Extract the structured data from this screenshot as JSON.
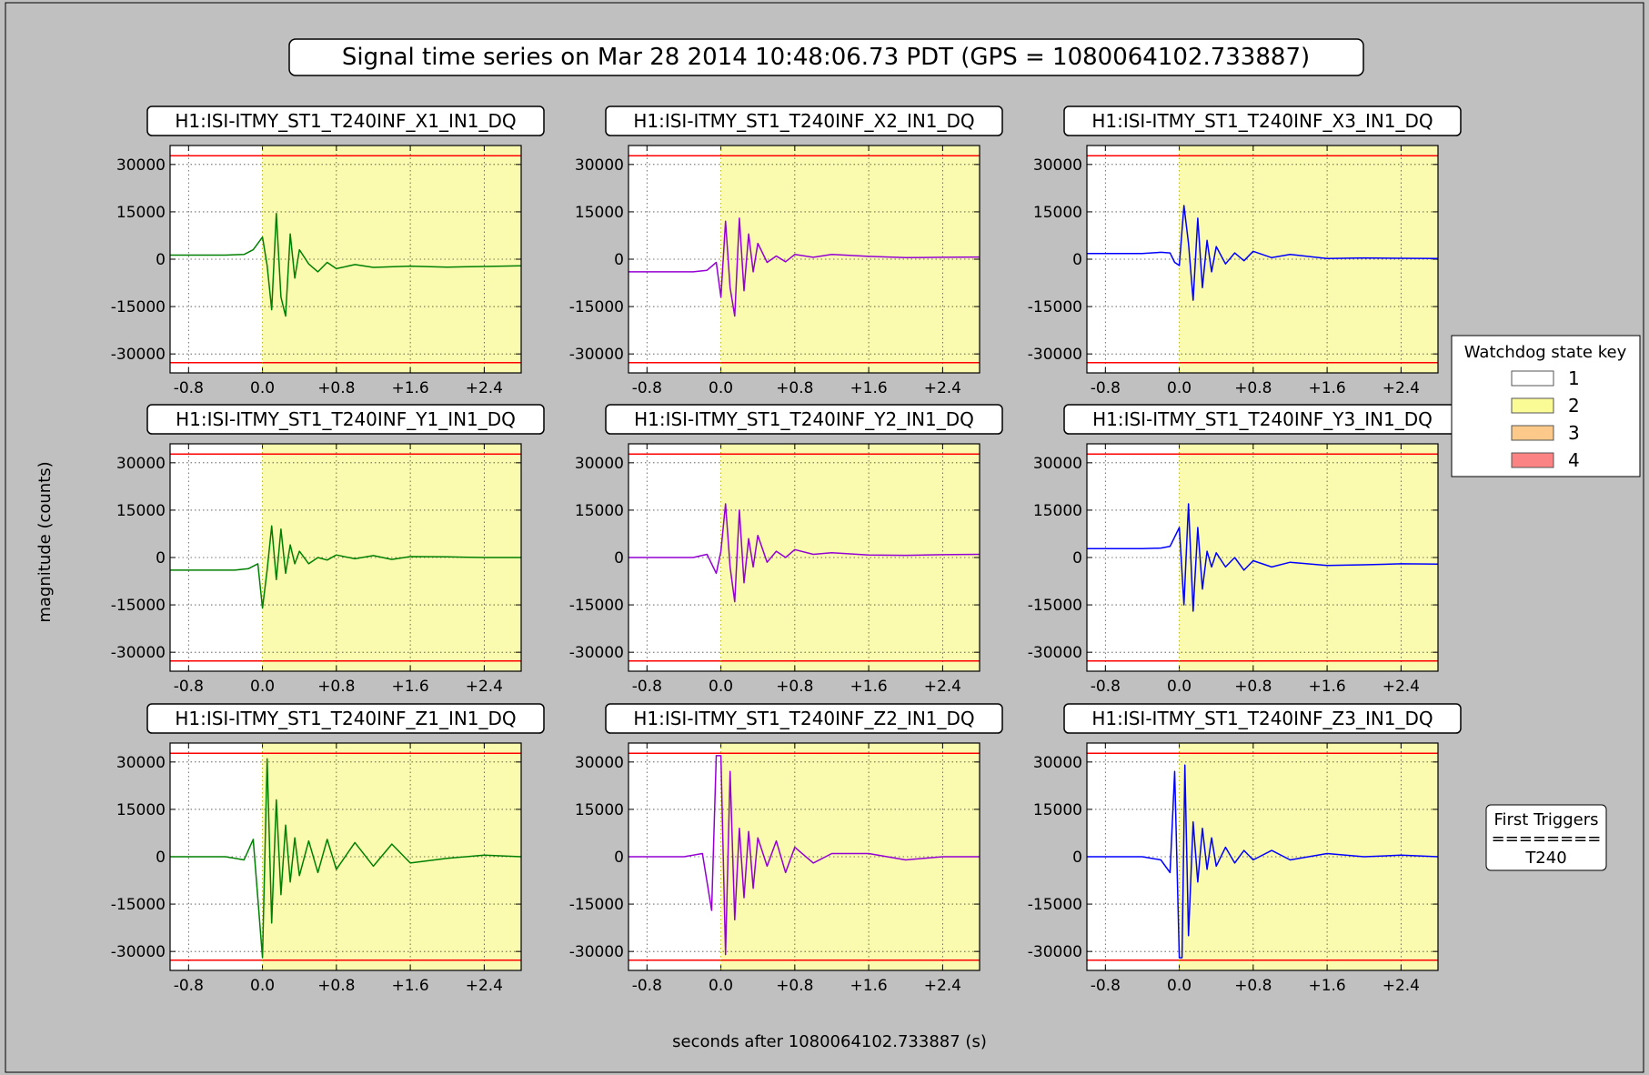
{
  "figure": {
    "title": "Signal time series on Mar 28 2014 10:48:06.73 PDT (GPS = 1080064102.733887)",
    "xlabel": "seconds after 1080064102.733887 (s)",
    "ylabel": "magnitude (counts)"
  },
  "legend": {
    "title": "Watchdog state key",
    "items": [
      {
        "label": "1",
        "color": "#ffffff"
      },
      {
        "label": "2",
        "color": "#fbfb96"
      },
      {
        "label": "3",
        "color": "#fcc98a"
      },
      {
        "label": "4",
        "color": "#fb8383"
      }
    ]
  },
  "triggers": {
    "title": "First Triggers",
    "separator": "========",
    "value": "T240"
  },
  "colors": {
    "figure_bg": "#c0c0c0",
    "threshold": "#ff0000",
    "state2_fill": "#fbfbb0",
    "series_1": "#008000",
    "series_2": "#9400d3",
    "series_3": "#0000ff"
  },
  "chart_data": [
    {
      "type": "line",
      "title": "H1:ISI-ITMY_ST1_T240INF_X1_IN1_DQ",
      "color": "#008000",
      "xlim": [
        -1.0,
        2.8
      ],
      "ylim": [
        -36000,
        36000
      ],
      "xticks": [
        "-0.8",
        "0.0",
        "+0.8",
        "+1.6",
        "+2.4"
      ],
      "yticks": [
        "30000",
        "15000",
        "0",
        "-15000",
        "-30000"
      ],
      "thresholds": [
        32768,
        -32768
      ],
      "state2_start": 0.0,
      "x": [
        -1.0,
        -0.4,
        -0.2,
        -0.1,
        0.0,
        0.05,
        0.1,
        0.15,
        0.2,
        0.25,
        0.3,
        0.35,
        0.4,
        0.5,
        0.6,
        0.7,
        0.8,
        1.0,
        1.2,
        1.6,
        2.0,
        2.4,
        2.8
      ],
      "y": [
        1300,
        1300,
        1500,
        3000,
        7000,
        -2000,
        -16000,
        14500,
        -12000,
        -18000,
        8000,
        -6000,
        3000,
        -1500,
        -4000,
        -1000,
        -3000,
        -1700,
        -2600,
        -2200,
        -2500,
        -2300,
        -2100
      ]
    },
    {
      "type": "line",
      "title": "H1:ISI-ITMY_ST1_T240INF_X2_IN1_DQ",
      "color": "#9400d3",
      "xlim": [
        -1.0,
        2.8
      ],
      "ylim": [
        -36000,
        36000
      ],
      "xticks": [
        "-0.8",
        "0.0",
        "+0.8",
        "+1.6",
        "+2.4"
      ],
      "yticks": [
        "30000",
        "15000",
        "0",
        "-15000",
        "-30000"
      ],
      "thresholds": [
        32768,
        -32768
      ],
      "state2_start": 0.0,
      "x": [
        -1.0,
        -0.3,
        -0.15,
        -0.05,
        0.0,
        0.05,
        0.1,
        0.15,
        0.2,
        0.25,
        0.3,
        0.35,
        0.4,
        0.5,
        0.6,
        0.7,
        0.8,
        1.0,
        1.2,
        1.6,
        2.0,
        2.4,
        2.8
      ],
      "y": [
        -4000,
        -4000,
        -3500,
        -1000,
        -12000,
        12000,
        -9000,
        -18000,
        13000,
        -10000,
        8000,
        -4000,
        5000,
        -1000,
        1000,
        -800,
        1500,
        600,
        1500,
        900,
        500,
        600,
        700
      ]
    },
    {
      "type": "line",
      "title": "H1:ISI-ITMY_ST1_T240INF_X3_IN1_DQ",
      "color": "#0000ff",
      "xlim": [
        -1.0,
        2.8
      ],
      "ylim": [
        -36000,
        36000
      ],
      "xticks": [
        "-0.8",
        "0.0",
        "+0.8",
        "+1.6",
        "+2.4"
      ],
      "yticks": [
        "30000",
        "15000",
        "0",
        "-15000",
        "-30000"
      ],
      "thresholds": [
        32768,
        -32768
      ],
      "state2_start": 0.0,
      "x": [
        -1.0,
        -0.4,
        -0.2,
        -0.1,
        -0.05,
        0.0,
        0.05,
        0.1,
        0.15,
        0.2,
        0.25,
        0.3,
        0.35,
        0.4,
        0.5,
        0.6,
        0.7,
        0.8,
        1.0,
        1.2,
        1.6,
        2.0,
        2.4,
        2.8
      ],
      "y": [
        1800,
        1800,
        2200,
        2000,
        -1000,
        -2000,
        17000,
        5000,
        -13000,
        13000,
        -9000,
        6000,
        -4000,
        4000,
        -1500,
        2000,
        -500,
        2500,
        500,
        1500,
        200,
        400,
        300,
        200
      ]
    },
    {
      "type": "line",
      "title": "H1:ISI-ITMY_ST1_T240INF_Y1_IN1_DQ",
      "color": "#008000",
      "xlim": [
        -1.0,
        2.8
      ],
      "ylim": [
        -36000,
        36000
      ],
      "xticks": [
        "-0.8",
        "0.0",
        "+0.8",
        "+1.6",
        "+2.4"
      ],
      "yticks": [
        "30000",
        "15000",
        "0",
        "-15000",
        "-30000"
      ],
      "thresholds": [
        32768,
        -32768
      ],
      "state2_start": 0.0,
      "x": [
        -1.0,
        -0.3,
        -0.15,
        -0.05,
        0.0,
        0.05,
        0.1,
        0.15,
        0.2,
        0.25,
        0.3,
        0.35,
        0.4,
        0.5,
        0.6,
        0.7,
        0.8,
        1.0,
        1.2,
        1.4,
        1.6,
        2.0,
        2.4,
        2.8
      ],
      "y": [
        -4000,
        -4000,
        -3500,
        -2000,
        -16000,
        -4000,
        10000,
        -7000,
        9000,
        -5000,
        4000,
        -2000,
        2000,
        -2000,
        0,
        -800,
        800,
        -400,
        600,
        -600,
        300,
        200,
        0,
        0
      ]
    },
    {
      "type": "line",
      "title": "H1:ISI-ITMY_ST1_T240INF_Y2_IN1_DQ",
      "color": "#9400d3",
      "xlim": [
        -1.0,
        2.8
      ],
      "ylim": [
        -36000,
        36000
      ],
      "xticks": [
        "-0.8",
        "0.0",
        "+0.8",
        "+1.6",
        "+2.4"
      ],
      "yticks": [
        "30000",
        "15000",
        "0",
        "-15000",
        "-30000"
      ],
      "thresholds": [
        32768,
        -32768
      ],
      "state2_start": 0.0,
      "x": [
        -1.0,
        -0.3,
        -0.15,
        -0.05,
        0.0,
        0.05,
        0.1,
        0.15,
        0.2,
        0.25,
        0.3,
        0.35,
        0.4,
        0.5,
        0.6,
        0.7,
        0.8,
        1.0,
        1.2,
        1.6,
        2.0,
        2.4,
        2.8
      ],
      "y": [
        0,
        0,
        1000,
        -5000,
        2000,
        17000,
        -3000,
        -14000,
        15000,
        -8000,
        6000,
        -3000,
        7000,
        -1500,
        2000,
        0,
        2500,
        1000,
        1500,
        800,
        700,
        900,
        1000
      ]
    },
    {
      "type": "line",
      "title": "H1:ISI-ITMY_ST1_T240INF_Y3_IN1_DQ",
      "color": "#0000ff",
      "xlim": [
        -1.0,
        2.8
      ],
      "ylim": [
        -36000,
        36000
      ],
      "xticks": [
        "-0.8",
        "0.0",
        "+0.8",
        "+1.6",
        "+2.4"
      ],
      "yticks": [
        "30000",
        "15000",
        "0",
        "-15000",
        "-30000"
      ],
      "thresholds": [
        32768,
        -32768
      ],
      "state2_start": 0.0,
      "x": [
        -1.0,
        -0.4,
        -0.2,
        -0.1,
        0.0,
        0.05,
        0.1,
        0.15,
        0.2,
        0.25,
        0.3,
        0.35,
        0.4,
        0.5,
        0.6,
        0.7,
        0.8,
        1.0,
        1.2,
        1.6,
        2.0,
        2.4,
        2.8
      ],
      "y": [
        2800,
        2800,
        3000,
        3500,
        9500,
        -15000,
        17000,
        -17000,
        9500,
        -10000,
        2000,
        -3000,
        1500,
        -3000,
        0,
        -4000,
        -1000,
        -3000,
        -1500,
        -2500,
        -2300,
        -2000,
        -2100
      ]
    },
    {
      "type": "line",
      "title": "H1:ISI-ITMY_ST1_T240INF_Z1_IN1_DQ",
      "color": "#008000",
      "xlim": [
        -1.0,
        2.8
      ],
      "ylim": [
        -36000,
        36000
      ],
      "xticks": [
        "-0.8",
        "0.0",
        "+0.8",
        "+1.6",
        "+2.4"
      ],
      "yticks": [
        "30000",
        "15000",
        "0",
        "-15000",
        "-30000"
      ],
      "thresholds": [
        32768,
        -32768
      ],
      "state2_start": 0.0,
      "x": [
        -1.0,
        -0.4,
        -0.2,
        -0.1,
        0.0,
        0.05,
        0.1,
        0.15,
        0.2,
        0.25,
        0.3,
        0.35,
        0.4,
        0.5,
        0.6,
        0.7,
        0.8,
        1.0,
        1.2,
        1.4,
        1.6,
        2.0,
        2.4,
        2.8
      ],
      "y": [
        0,
        0,
        -1000,
        5500,
        -32000,
        31000,
        -21000,
        18000,
        -12000,
        10000,
        -8000,
        6000,
        -6000,
        5000,
        -5000,
        5500,
        -4000,
        4500,
        -3000,
        4000,
        -2000,
        -500,
        500,
        0
      ]
    },
    {
      "type": "line",
      "title": "H1:ISI-ITMY_ST1_T240INF_Z2_IN1_DQ",
      "color": "#9400d3",
      "xlim": [
        -1.0,
        2.8
      ],
      "ylim": [
        -36000,
        36000
      ],
      "xticks": [
        "-0.8",
        "0.0",
        "+0.8",
        "+1.6",
        "+2.4"
      ],
      "yticks": [
        "30000",
        "15000",
        "0",
        "-15000",
        "-30000"
      ],
      "thresholds": [
        32768,
        -32768
      ],
      "state2_start": 0.0,
      "x": [
        -1.0,
        -0.4,
        -0.2,
        -0.1,
        -0.05,
        0.0,
        0.05,
        0.1,
        0.15,
        0.2,
        0.25,
        0.3,
        0.35,
        0.4,
        0.5,
        0.6,
        0.7,
        0.8,
        1.0,
        1.2,
        1.6,
        2.0,
        2.4,
        2.8
      ],
      "y": [
        0,
        0,
        1000,
        -17000,
        32000,
        32000,
        -31000,
        27000,
        -20000,
        9000,
        -13000,
        8000,
        -10000,
        6000,
        -3000,
        5000,
        -5000,
        3000,
        -2000,
        1000,
        1000,
        -1000,
        0,
        0
      ]
    },
    {
      "type": "line",
      "title": "H1:ISI-ITMY_ST1_T240INF_Z3_IN1_DQ",
      "color": "#0000ff",
      "xlim": [
        -1.0,
        2.8
      ],
      "ylim": [
        -36000,
        36000
      ],
      "xticks": [
        "-0.8",
        "0.0",
        "+0.8",
        "+1.6",
        "+2.4"
      ],
      "yticks": [
        "30000",
        "15000",
        "0",
        "-15000",
        "-30000"
      ],
      "thresholds": [
        32768,
        -32768
      ],
      "state2_start": 0.0,
      "x": [
        -1.0,
        -0.4,
        -0.2,
        -0.1,
        -0.05,
        0.0,
        0.03,
        0.06,
        0.1,
        0.15,
        0.2,
        0.25,
        0.3,
        0.35,
        0.4,
        0.5,
        0.6,
        0.7,
        0.8,
        1.0,
        1.2,
        1.6,
        2.0,
        2.4,
        2.8
      ],
      "y": [
        0,
        0,
        -1000,
        -5000,
        27000,
        -32000,
        -32000,
        29000,
        -25000,
        11000,
        -8000,
        9000,
        -4000,
        6000,
        -3000,
        3000,
        -2000,
        2000,
        -1000,
        2000,
        -1000,
        1000,
        0,
        500,
        0
      ]
    }
  ]
}
